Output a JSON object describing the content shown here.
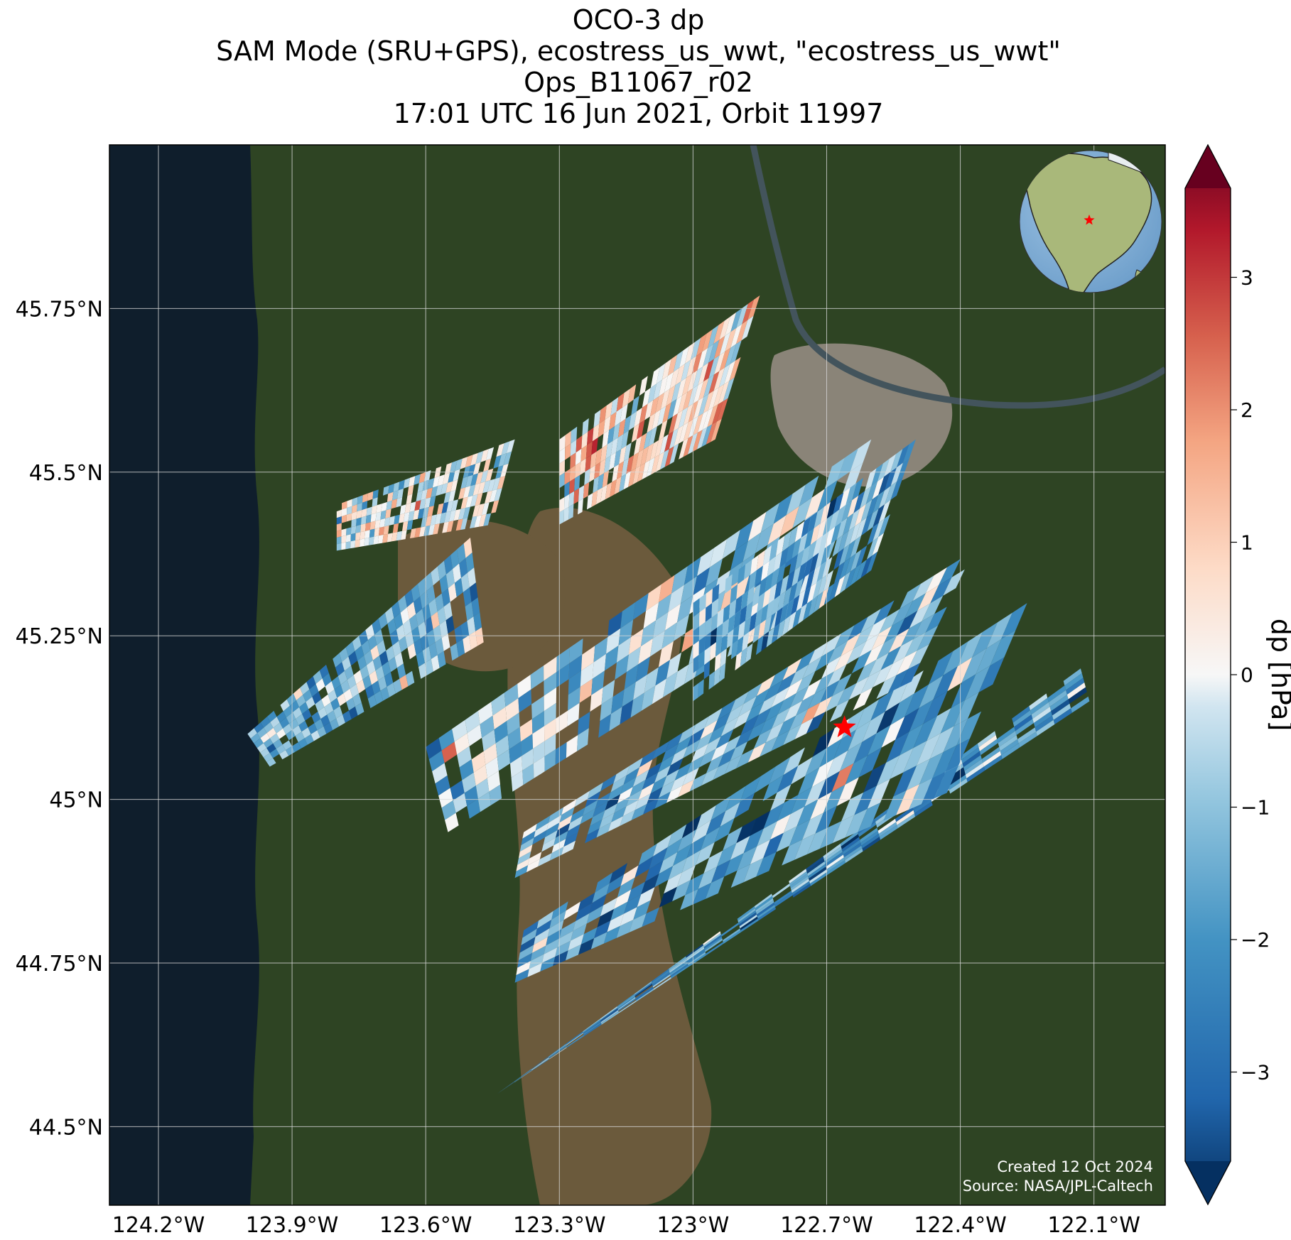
{
  "title": {
    "line1": "OCO-3 dp",
    "line2": "SAM Mode (SRU+GPS), ecostress_us_wwt, \"ecostress_us_wwt\"",
    "line3": "Ops_B11067_r02",
    "line4": "17:01 UTC 16 Jun 2021, Orbit 11997"
  },
  "map": {
    "lon_range": [
      -124.31,
      -121.94
    ],
    "lat_range": [
      44.38,
      46.0
    ],
    "lon_ticks": [
      {
        "value": -124.2,
        "label": "124.2°W"
      },
      {
        "value": -123.9,
        "label": "123.9°W"
      },
      {
        "value": -123.6,
        "label": "123.6°W"
      },
      {
        "value": -123.3,
        "label": "123.3°W"
      },
      {
        "value": -123.0,
        "label": "123°W"
      },
      {
        "value": -122.7,
        "label": "122.7°W"
      },
      {
        "value": -122.4,
        "label": "122.4°W"
      },
      {
        "value": -122.1,
        "label": "122.1°W"
      }
    ],
    "lat_ticks": [
      {
        "value": 45.75,
        "label": "45.75°N"
      },
      {
        "value": 45.5,
        "label": "45.5°N"
      },
      {
        "value": 45.25,
        "label": "45.25°N"
      },
      {
        "value": 45.0,
        "label": "45°N"
      },
      {
        "value": 44.75,
        "label": "44.75°N"
      },
      {
        "value": 44.5,
        "label": "44.5°N"
      }
    ],
    "grid": true,
    "target": {
      "lon": -122.66,
      "lat": 45.11,
      "marker": "star",
      "color": "#ff0000"
    },
    "colors": {
      "ocean": "#0f1e2c",
      "land": "#2e4423",
      "valley": "#6b5a3c",
      "city": "#8a8478",
      "river": "#43545c"
    },
    "inset_globe": {
      "marker": "star",
      "marker_color": "#ff0000"
    }
  },
  "colorbar": {
    "label": "dp [hPa]",
    "colormap": "RdBu_r",
    "range": [
      -4,
      4
    ],
    "extend": "both",
    "ticks": [
      {
        "value": 3,
        "label": "3"
      },
      {
        "value": 2,
        "label": "2"
      },
      {
        "value": 1,
        "label": "1"
      },
      {
        "value": 0,
        "label": "0"
      },
      {
        "value": -1,
        "label": "−1"
      },
      {
        "value": -2,
        "label": "−2"
      },
      {
        "value": -3,
        "label": "−3"
      }
    ]
  },
  "credits": {
    "created": "Created 12 Oct 2024",
    "source": "Source: NASA/JPL-Caltech"
  },
  "chart_data": {
    "type": "heatmap",
    "title": "OCO-3 dp",
    "variable": "dp",
    "units": "hPa",
    "color_range": [
      -4,
      4
    ],
    "swaths": [
      {
        "corners": [
          [
            -123.44,
            44.55
          ],
          [
            -122.13,
            45.2
          ],
          [
            -122.11,
            45.15
          ],
          [
            -123.44,
            44.55
          ]
        ],
        "mean_dp": -1.8
      },
      {
        "corners": [
          [
            -123.38,
            44.8
          ],
          [
            -122.25,
            45.3
          ],
          [
            -122.43,
            45.01
          ],
          [
            -123.4,
            44.72
          ]
        ],
        "mean_dp": -1.6
      },
      {
        "corners": [
          [
            -123.38,
            44.95
          ],
          [
            -122.37,
            45.38
          ],
          [
            -122.51,
            45.18
          ],
          [
            -123.4,
            44.88
          ]
        ],
        "mean_dp": -1.2
      },
      {
        "corners": [
          [
            -123.6,
            45.08
          ],
          [
            -122.6,
            45.55
          ],
          [
            -122.73,
            45.3
          ],
          [
            -123.55,
            44.95
          ]
        ],
        "mean_dp": -0.9
      },
      {
        "corners": [
          [
            -123.0,
            45.3
          ],
          [
            -122.5,
            45.55
          ],
          [
            -122.6,
            45.35
          ],
          [
            -123.0,
            45.15
          ]
        ],
        "mean_dp": -1.4
      },
      {
        "corners": [
          [
            -124.0,
            45.1
          ],
          [
            -123.5,
            45.4
          ],
          [
            -123.47,
            45.24
          ],
          [
            -123.95,
            45.05
          ]
        ],
        "mean_dp": -1.3
      },
      {
        "corners": [
          [
            -123.8,
            45.45
          ],
          [
            -123.4,
            45.55
          ],
          [
            -123.45,
            45.42
          ],
          [
            -123.8,
            45.38
          ]
        ],
        "mean_dp": -0.2
      },
      {
        "corners": [
          [
            -123.3,
            45.55
          ],
          [
            -122.85,
            45.77
          ],
          [
            -122.95,
            45.55
          ],
          [
            -123.3,
            45.42
          ]
        ],
        "mean_dp": 0.6
      }
    ]
  }
}
